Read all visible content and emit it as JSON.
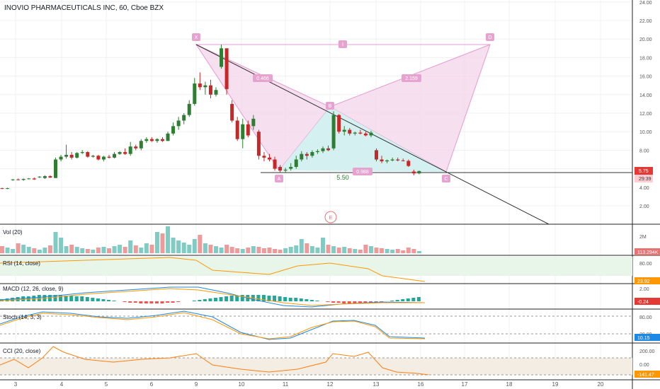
{
  "title": "INOVIO PHARMACEUTICALS INC, 60, Cboe BZX",
  "colors": {
    "up": "#26a69a",
    "down": "#ef5350",
    "upBody": "#2e7d32",
    "downBody": "#c62828",
    "pattern": "#e69ad1",
    "patternFill": "#f4d7ea",
    "patternTeal": "#cfeef0",
    "grid": "#eef0f3",
    "axisText": "#555",
    "badgeRed": "#e53935",
    "badgeBlue": "#1e88e5"
  },
  "price_axis": {
    "ticks": [
      "24.00",
      "22.00",
      "20.00",
      "18.00",
      "16.00",
      "14.00",
      "12.00",
      "10.00",
      "8.00",
      "6.00",
      "4.00",
      "2.00"
    ],
    "last_price": "5.75",
    "countdown": "29:39"
  },
  "time_axis": {
    "labels": [
      "3",
      "4",
      "5",
      "6",
      "9",
      "10",
      "11",
      "12",
      "13",
      "16",
      "17",
      "18",
      "19",
      "20"
    ]
  },
  "pattern": {
    "points": [
      "X",
      "A",
      "B",
      "C",
      "D"
    ],
    "retracements": [
      "0.466",
      "2.159",
      "0.988"
    ],
    "extra_label": "I",
    "level_label": "5.50",
    "circle_label": "E"
  },
  "panes": [
    {
      "label": "Vol (20)",
      "axis": [
        "2M"
      ],
      "value": "113.294K",
      "value_color": "#e57373"
    },
    {
      "label": "RSI (14, close)",
      "axis": [
        "80.00"
      ],
      "value": "23.92",
      "value_color": "#ff9800"
    },
    {
      "label": "MACD (12, 26, close, 9)",
      "axis": [
        "2.00"
      ],
      "value": "-0.24",
      "value_color": "#e53935"
    },
    {
      "label": "Stoch (14, 3, 3)",
      "axis": [
        "80.00",
        "20.00"
      ],
      "value": "10.15",
      "value_color": "#1e88e5"
    },
    {
      "label": "CCI (20, close)",
      "axis": [
        "200.00",
        "0.00"
      ],
      "value": "-141.47",
      "value_color": "#ff9800"
    }
  ],
  "chart_data": {
    "type": "candlestick",
    "title": "INOVIO PHARMACEUTICALS INC, 60, Cboe BZX",
    "ylim": [
      1,
      24
    ],
    "candles": [
      [
        3.9,
        3.95,
        3.8,
        3.85
      ],
      [
        3.85,
        3.95,
        3.8,
        3.9
      ],
      [
        4.8,
        4.9,
        4.7,
        4.85
      ],
      [
        4.85,
        4.95,
        4.75,
        4.8
      ],
      [
        4.8,
        4.95,
        4.7,
        4.9
      ],
      [
        4.9,
        5.0,
        4.85,
        4.95
      ],
      [
        4.95,
        5.05,
        4.8,
        4.85
      ],
      [
        5.1,
        5.2,
        5.0,
        5.15
      ],
      [
        5.0,
        5.3,
        4.9,
        5.2
      ],
      [
        5.2,
        5.3,
        5.0,
        5.05
      ],
      [
        5.0,
        7.2,
        5.0,
        7.0
      ],
      [
        7.0,
        7.5,
        6.8,
        7.3
      ],
      [
        7.3,
        8.6,
        7.1,
        7.5
      ],
      [
        7.5,
        7.8,
        7.0,
        7.2
      ],
      [
        7.2,
        7.8,
        7.1,
        7.7
      ],
      [
        7.7,
        8.0,
        7.6,
        7.8
      ],
      [
        7.8,
        7.9,
        7.2,
        7.3
      ],
      [
        7.3,
        7.5,
        7.2,
        7.4
      ],
      [
        7.4,
        7.5,
        6.9,
        7.0
      ],
      [
        7.0,
        7.4,
        6.8,
        7.3
      ],
      [
        7.3,
        7.5,
        7.1,
        7.2
      ],
      [
        7.2,
        7.8,
        7.1,
        7.6
      ],
      [
        7.6,
        7.9,
        7.5,
        7.8
      ],
      [
        7.8,
        8.2,
        7.5,
        7.6
      ],
      [
        7.6,
        8.9,
        7.4,
        8.4
      ],
      [
        8.4,
        8.6,
        8.0,
        8.2
      ],
      [
        8.2,
        9.2,
        8.0,
        9.0
      ],
      [
        9.0,
        9.4,
        8.8,
        9.2
      ],
      [
        9.2,
        9.4,
        8.9,
        9.0
      ],
      [
        9.0,
        9.3,
        8.8,
        9.2
      ],
      [
        9.2,
        9.4,
        8.9,
        9.0
      ],
      [
        9.0,
        10.0,
        9.0,
        9.8
      ],
      [
        9.8,
        11.0,
        9.6,
        10.6
      ],
      [
        10.6,
        11.6,
        10.2,
        11.2
      ],
      [
        11.2,
        12.0,
        10.8,
        11.8
      ],
      [
        11.8,
        13.4,
        11.6,
        13.0
      ],
      [
        13.0,
        15.8,
        12.8,
        15.2
      ],
      [
        15.2,
        16.4,
        14.5,
        14.8
      ],
      [
        14.8,
        15.4,
        14.0,
        15.0
      ],
      [
        15.0,
        15.6,
        13.6,
        14.0
      ],
      [
        14.0,
        14.8,
        13.8,
        14.5
      ],
      [
        17.0,
        19.4,
        16.8,
        19.0
      ],
      [
        19.0,
        19.0,
        14.0,
        14.6
      ],
      [
        13.0,
        13.4,
        11.0,
        11.2
      ],
      [
        11.2,
        11.6,
        9.0,
        9.2
      ],
      [
        9.2,
        11.4,
        8.2,
        10.8
      ],
      [
        10.8,
        11.2,
        9.4,
        9.6
      ],
      [
        10.6,
        11.8,
        10.2,
        11.4
      ],
      [
        10.0,
        10.2,
        7.0,
        7.4
      ],
      [
        7.4,
        7.8,
        6.8,
        7.2
      ],
      [
        7.2,
        7.6,
        6.8,
        7.0
      ],
      [
        7.0,
        7.3,
        5.8,
        6.0
      ],
      [
        6.2,
        6.4,
        5.6,
        5.8
      ],
      [
        5.8,
        6.1,
        5.6,
        5.9
      ],
      [
        6.0,
        6.6,
        5.8,
        6.2
      ],
      [
        6.2,
        7.4,
        6.0,
        7.0
      ],
      [
        7.0,
        7.9,
        6.8,
        7.6
      ],
      [
        7.6,
        7.8,
        7.0,
        7.4
      ],
      [
        7.4,
        8.0,
        7.2,
        7.8
      ],
      [
        7.8,
        8.1,
        7.6,
        7.9
      ],
      [
        7.9,
        8.4,
        7.7,
        8.2
      ],
      [
        8.2,
        8.5,
        7.9,
        8.0
      ],
      [
        8.2,
        12.2,
        8.0,
        11.8
      ],
      [
        11.8,
        11.9,
        9.8,
        10.0
      ],
      [
        10.0,
        10.6,
        9.6,
        10.2
      ],
      [
        10.2,
        10.4,
        9.6,
        9.8
      ],
      [
        9.8,
        10.0,
        9.6,
        9.9
      ],
      [
        9.9,
        10.2,
        9.7,
        9.8
      ],
      [
        9.8,
        10.0,
        9.5,
        9.6
      ],
      [
        9.6,
        10.1,
        9.4,
        9.9
      ],
      [
        8.0,
        8.2,
        6.8,
        7.0
      ],
      [
        7.0,
        7.4,
        6.6,
        6.8
      ],
      [
        6.8,
        7.0,
        6.6,
        6.9
      ],
      [
        6.9,
        7.2,
        6.8,
        7.0
      ],
      [
        7.0,
        7.2,
        6.8,
        6.9
      ],
      [
        6.9,
        7.1,
        6.8,
        6.85
      ],
      [
        6.85,
        7.0,
        6.2,
        6.3
      ],
      [
        5.7,
        5.9,
        5.3,
        5.5
      ],
      [
        5.5,
        5.8,
        5.4,
        5.75
      ]
    ]
  }
}
